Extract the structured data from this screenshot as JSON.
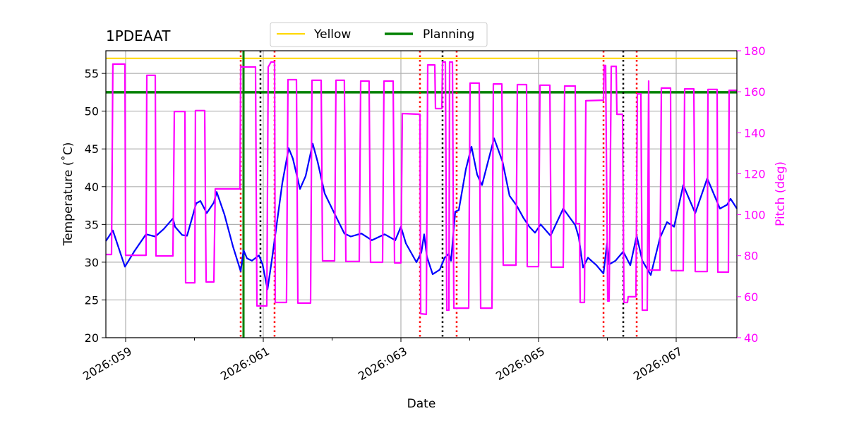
{
  "chart_data": {
    "type": "line",
    "title": "1PDEAAT",
    "xlabel": "Date",
    "ylabel": "Temperature ($^\\circ$C)",
    "ylabel_display": "Temperature (˚C)",
    "y2label": "Pitch (deg)",
    "xlim": [
      58.713,
      67.882
    ],
    "ylim": [
      20,
      58
    ],
    "y2lim": [
      40,
      180
    ],
    "grid": true,
    "legend_placement": "top-center",
    "x_ticks": [
      {
        "v": 59,
        "label": "2026:059"
      },
      {
        "v": 61,
        "label": "2026:061"
      },
      {
        "v": 63,
        "label": "2026:063"
      },
      {
        "v": 65,
        "label": "2026:065"
      },
      {
        "v": 67,
        "label": "2026:067"
      }
    ],
    "x_minor_ticks": [
      60,
      62,
      64,
      66
    ],
    "y_ticks": [
      20,
      25,
      30,
      35,
      40,
      45,
      50,
      55
    ],
    "y2_ticks": [
      40,
      60,
      80,
      100,
      120,
      140,
      160,
      180
    ],
    "legend": [
      {
        "label": "Yellow",
        "color": "#ffd700"
      },
      {
        "label": "Planning",
        "color": "#008000"
      }
    ],
    "hlines": [
      {
        "name": "Yellow",
        "y": 57.0,
        "color": "#ffd700"
      },
      {
        "name": "Planning",
        "y": 52.5,
        "color": "#008000"
      }
    ],
    "vlines": [
      {
        "x": 60.713,
        "color": "#008000",
        "style": "solid"
      },
      {
        "x": 60.672,
        "color": "#ff0000",
        "style": "dotted"
      },
      {
        "x": 61.164,
        "color": "#ff0000",
        "style": "dotted"
      },
      {
        "x": 63.277,
        "color": "#ff0000",
        "style": "dotted"
      },
      {
        "x": 63.81,
        "color": "#ff0000",
        "style": "dotted"
      },
      {
        "x": 65.944,
        "color": "#ff0000",
        "style": "dotted"
      },
      {
        "x": 66.426,
        "color": "#ff0000",
        "style": "dotted"
      },
      {
        "x": 60.959,
        "color": "#000000",
        "style": "dotted"
      },
      {
        "x": 63.605,
        "color": "#000000",
        "style": "dotted"
      },
      {
        "x": 66.231,
        "color": "#000000",
        "style": "dotted"
      }
    ],
    "series": [
      {
        "name": "Temperature",
        "axis": "left",
        "color": "#0000ff",
        "points": [
          [
            58.713,
            32.8
          ],
          [
            58.815,
            34.2
          ],
          [
            58.99,
            29.4
          ],
          [
            59.123,
            31.4
          ],
          [
            59.297,
            33.7
          ],
          [
            59.431,
            33.4
          ],
          [
            59.554,
            34.4
          ],
          [
            59.687,
            35.8
          ],
          [
            59.718,
            34.7
          ],
          [
            59.821,
            33.6
          ],
          [
            59.892,
            33.5
          ],
          [
            60.026,
            37.8
          ],
          [
            60.087,
            38.1
          ],
          [
            60.179,
            36.5
          ],
          [
            60.282,
            37.9
          ],
          [
            60.323,
            39.3
          ],
          [
            60.436,
            36.3
          ],
          [
            60.559,
            32.1
          ],
          [
            60.672,
            28.8
          ],
          [
            60.713,
            31.6
          ],
          [
            60.764,
            30.5
          ],
          [
            60.836,
            30.2
          ],
          [
            60.938,
            30.9
          ],
          [
            60.99,
            29.7
          ],
          [
            61.062,
            26.4
          ],
          [
            61.123,
            30.2
          ],
          [
            61.195,
            35.0
          ],
          [
            61.277,
            40.5
          ],
          [
            61.369,
            45.1
          ],
          [
            61.431,
            43.7
          ],
          [
            61.533,
            39.7
          ],
          [
            61.615,
            41.4
          ],
          [
            61.718,
            45.7
          ],
          [
            61.79,
            43.3
          ],
          [
            61.892,
            39.1
          ],
          [
            62.026,
            36.6
          ],
          [
            62.179,
            33.8
          ],
          [
            62.272,
            33.4
          ],
          [
            62.426,
            33.8
          ],
          [
            62.579,
            32.9
          ],
          [
            62.764,
            33.7
          ],
          [
            62.918,
            32.9
          ],
          [
            63.0,
            34.7
          ],
          [
            63.072,
            32.5
          ],
          [
            63.226,
            30.0
          ],
          [
            63.297,
            31.3
          ],
          [
            63.338,
            33.7
          ],
          [
            63.379,
            30.7
          ],
          [
            63.462,
            28.4
          ],
          [
            63.564,
            29.0
          ],
          [
            63.636,
            30.6
          ],
          [
            63.697,
            31.1
          ],
          [
            63.728,
            30.2
          ],
          [
            63.79,
            36.7
          ],
          [
            63.841,
            36.9
          ],
          [
            63.944,
            42.3
          ],
          [
            64.026,
            45.3
          ],
          [
            64.108,
            41.6
          ],
          [
            64.179,
            40.2
          ],
          [
            64.251,
            42.8
          ],
          [
            64.354,
            46.4
          ],
          [
            64.477,
            43.3
          ],
          [
            64.579,
            38.8
          ],
          [
            64.682,
            37.5
          ],
          [
            64.785,
            35.8
          ],
          [
            64.867,
            34.7
          ],
          [
            64.949,
            33.9
          ],
          [
            65.031,
            35.0
          ],
          [
            65.174,
            33.5
          ],
          [
            65.359,
            37.1
          ],
          [
            65.533,
            34.9
          ],
          [
            65.585,
            33.3
          ],
          [
            65.646,
            29.3
          ],
          [
            65.718,
            30.6
          ],
          [
            65.841,
            29.6
          ],
          [
            65.944,
            28.5
          ],
          [
            65.995,
            32.5
          ],
          [
            66.026,
            29.7
          ],
          [
            66.118,
            30.2
          ],
          [
            66.231,
            31.4
          ],
          [
            66.333,
            29.6
          ],
          [
            66.426,
            33.5
          ],
          [
            66.508,
            30.2
          ],
          [
            66.631,
            28.3
          ],
          [
            66.764,
            33.2
          ],
          [
            66.867,
            35.3
          ],
          [
            66.969,
            34.7
          ],
          [
            67.103,
            40.2
          ],
          [
            67.277,
            36.5
          ],
          [
            67.451,
            41.1
          ],
          [
            67.636,
            37.1
          ],
          [
            67.738,
            37.6
          ],
          [
            67.79,
            38.4
          ],
          [
            67.882,
            37.1
          ]
        ]
      },
      {
        "name": "Pitch",
        "axis": "right",
        "color": "#ff00ff",
        "points": [
          [
            58.713,
            80.6
          ],
          [
            58.795,
            80.6
          ],
          [
            58.815,
            173.5
          ],
          [
            58.99,
            173.5
          ],
          [
            59.0,
            80.2
          ],
          [
            59.297,
            80.2
          ],
          [
            59.308,
            168.0
          ],
          [
            59.431,
            168.0
          ],
          [
            59.441,
            79.9
          ],
          [
            59.687,
            79.9
          ],
          [
            59.708,
            150.4
          ],
          [
            59.862,
            150.4
          ],
          [
            59.872,
            66.8
          ],
          [
            60.005,
            66.8
          ],
          [
            60.015,
            150.8
          ],
          [
            60.149,
            150.8
          ],
          [
            60.169,
            67.2
          ],
          [
            60.282,
            67.2
          ],
          [
            60.303,
            112.6
          ],
          [
            60.662,
            112.6
          ],
          [
            60.672,
            172.4
          ],
          [
            60.692,
            172.1
          ],
          [
            60.887,
            172.1
          ],
          [
            60.908,
            55.5
          ],
          [
            61.051,
            55.5
          ],
          [
            61.072,
            172.1
          ],
          [
            61.113,
            174.5
          ],
          [
            61.164,
            174.5
          ],
          [
            61.174,
            57.2
          ],
          [
            61.338,
            57.2
          ],
          [
            61.359,
            165.9
          ],
          [
            61.482,
            165.9
          ],
          [
            61.503,
            56.9
          ],
          [
            61.687,
            56.9
          ],
          [
            61.708,
            165.6
          ],
          [
            61.841,
            165.6
          ],
          [
            61.862,
            77.5
          ],
          [
            62.036,
            77.5
          ],
          [
            62.056,
            165.6
          ],
          [
            62.179,
            165.6
          ],
          [
            62.2,
            77.2
          ],
          [
            62.395,
            77.2
          ],
          [
            62.415,
            165.2
          ],
          [
            62.538,
            165.2
          ],
          [
            62.559,
            76.8
          ],
          [
            62.733,
            76.8
          ],
          [
            62.754,
            165.2
          ],
          [
            62.887,
            165.2
          ],
          [
            62.908,
            76.5
          ],
          [
            63.0,
            76.5
          ],
          [
            63.021,
            149.4
          ],
          [
            63.277,
            149.0
          ],
          [
            63.287,
            51.7
          ],
          [
            63.369,
            51.4
          ],
          [
            63.39,
            173.1
          ],
          [
            63.492,
            173.1
          ],
          [
            63.503,
            151.8
          ],
          [
            63.595,
            151.8
          ],
          [
            63.605,
            174.5
          ],
          [
            63.646,
            174.5
          ],
          [
            63.667,
            53.4
          ],
          [
            63.697,
            53.4
          ],
          [
            63.708,
            174.5
          ],
          [
            63.749,
            174.5
          ],
          [
            63.769,
            54.4
          ],
          [
            63.985,
            54.4
          ],
          [
            64.005,
            164.2
          ],
          [
            64.138,
            164.2
          ],
          [
            64.159,
            54.4
          ],
          [
            64.323,
            54.4
          ],
          [
            64.344,
            163.8
          ],
          [
            64.467,
            163.8
          ],
          [
            64.487,
            75.4
          ],
          [
            64.672,
            75.4
          ],
          [
            64.692,
            163.5
          ],
          [
            64.826,
            163.5
          ],
          [
            64.836,
            74.7
          ],
          [
            65.0,
            74.7
          ],
          [
            65.021,
            163.2
          ],
          [
            65.164,
            163.2
          ],
          [
            65.185,
            74.4
          ],
          [
            65.359,
            74.4
          ],
          [
            65.379,
            162.8
          ],
          [
            65.533,
            162.8
          ],
          [
            65.544,
            95.7
          ],
          [
            65.595,
            95.7
          ],
          [
            65.605,
            57.2
          ],
          [
            65.667,
            57.2
          ],
          [
            65.687,
            155.6
          ],
          [
            65.944,
            155.9
          ],
          [
            65.954,
            172.8
          ],
          [
            65.974,
            172.8
          ],
          [
            66.005,
            57.9
          ],
          [
            66.026,
            57.9
          ],
          [
            66.056,
            172.4
          ],
          [
            66.128,
            172.4
          ],
          [
            66.138,
            149.0
          ],
          [
            66.221,
            149.0
          ],
          [
            66.241,
            57.2
          ],
          [
            66.292,
            57.2
          ],
          [
            66.303,
            60.0
          ],
          [
            66.415,
            60.0
          ],
          [
            66.436,
            159.0
          ],
          [
            66.487,
            159.0
          ],
          [
            66.508,
            53.4
          ],
          [
            66.579,
            53.4
          ],
          [
            66.6,
            165.2
          ],
          [
            66.61,
            73.0
          ],
          [
            66.764,
            73.0
          ],
          [
            66.785,
            161.8
          ],
          [
            66.918,
            161.8
          ],
          [
            66.928,
            72.7
          ],
          [
            67.103,
            72.7
          ],
          [
            67.123,
            161.4
          ],
          [
            67.256,
            161.4
          ],
          [
            67.277,
            72.3
          ],
          [
            67.451,
            72.3
          ],
          [
            67.462,
            161.1
          ],
          [
            67.595,
            161.1
          ],
          [
            67.605,
            72.0
          ],
          [
            67.759,
            72.0
          ],
          [
            67.769,
            160.7
          ],
          [
            67.882,
            160.7
          ]
        ]
      }
    ]
  }
}
